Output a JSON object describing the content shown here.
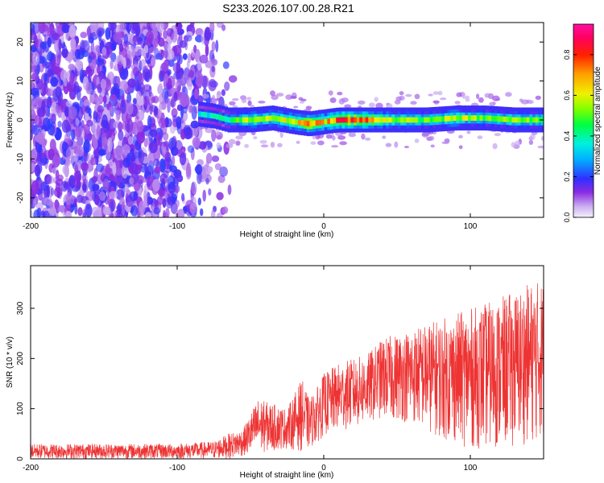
{
  "title": "S233.2026.107.00.28.R21",
  "chart_data": [
    {
      "type": "heatmap",
      "name": "spectrogram",
      "xlabel": "Height of straight line (km)",
      "ylabel": "Frequency (Hz)",
      "xlim": [
        -200,
        150
      ],
      "ylim": [
        -25,
        25
      ],
      "xticks": [
        -200,
        -100,
        0,
        100
      ],
      "yticks": [
        -20,
        -10,
        0,
        10,
        20
      ],
      "colorbar": {
        "label": "Normalized spectral amplitude",
        "range": [
          0,
          0.95
        ],
        "ticks": [
          0.0,
          0.2,
          0.4,
          0.6,
          0.8
        ],
        "tick_labels": [
          "0.0",
          "0.2",
          "0.4",
          "0.6",
          "0.8"
        ]
      },
      "noise_region": {
        "x": [
          -200,
          -60
        ],
        "y": [
          -25,
          25
        ],
        "amplitude": [
          0.05,
          0.2
        ]
      },
      "ridge": [
        {
          "x": -85,
          "y": 1.5,
          "amp": 0.3
        },
        {
          "x": -75,
          "y": 1.0,
          "amp": 0.35
        },
        {
          "x": -65,
          "y": 0.0,
          "amp": 0.4
        },
        {
          "x": -50,
          "y": 0.0,
          "amp": 0.6
        },
        {
          "x": -35,
          "y": 0.5,
          "amp": 0.55
        },
        {
          "x": -20,
          "y": -0.5,
          "amp": 0.65
        },
        {
          "x": -10,
          "y": -1.0,
          "amp": 0.85
        },
        {
          "x": 0,
          "y": -0.5,
          "amp": 0.7
        },
        {
          "x": 10,
          "y": 0.0,
          "amp": 0.9
        },
        {
          "x": 30,
          "y": 0.0,
          "amp": 0.8
        },
        {
          "x": 50,
          "y": 0.0,
          "amp": 0.55
        },
        {
          "x": 70,
          "y": 0.0,
          "amp": 0.5
        },
        {
          "x": 90,
          "y": 0.5,
          "amp": 0.6
        },
        {
          "x": 110,
          "y": 0.5,
          "amp": 0.5
        },
        {
          "x": 130,
          "y": 0.0,
          "amp": 0.55
        },
        {
          "x": 150,
          "y": 0.0,
          "amp": 0.5
        }
      ]
    },
    {
      "type": "line",
      "name": "snr",
      "xlabel": "Height of straight line (km)",
      "ylabel": "SNR (10 * v/v)",
      "xlim": [
        -200,
        150
      ],
      "ylim": [
        0,
        385
      ],
      "xticks": [
        -200,
        -100,
        0,
        100
      ],
      "yticks": [
        0,
        100,
        200,
        300
      ],
      "color": "#ee3333",
      "envelope": {
        "x": [
          -200,
          -150,
          -100,
          -75,
          -65,
          -55,
          -45,
          -35,
          -25,
          -15,
          -10,
          -5,
          0,
          10,
          20,
          30,
          40,
          60,
          80,
          100,
          120,
          140,
          150
        ],
        "low": [
          0,
          0,
          0,
          0,
          0,
          5,
          10,
          15,
          20,
          15,
          20,
          30,
          45,
          55,
          60,
          70,
          80,
          70,
          40,
          20,
          20,
          30,
          40
        ],
        "high": [
          30,
          30,
          30,
          35,
          50,
          60,
          120,
          110,
          100,
          160,
          120,
          140,
          170,
          190,
          200,
          210,
          240,
          260,
          280,
          300,
          320,
          350,
          360
        ]
      }
    }
  ]
}
